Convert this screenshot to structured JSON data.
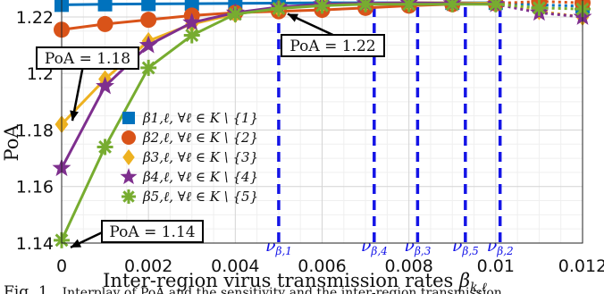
{
  "chart_data": {
    "type": "line",
    "xlabel": "Inter-region virus transmission rates β_{k,ℓ}",
    "ylabel": "PoA",
    "xlim": [
      0,
      0.012
    ],
    "ylim": [
      1.14,
      1.226
    ],
    "xticks": [
      0,
      0.002,
      0.004,
      0.006,
      0.008,
      0.01,
      0.012
    ],
    "xtick_labels": [
      "0",
      "0.002",
      "0.004",
      "0.006",
      "0.008",
      "0.01",
      "0.012"
    ],
    "yticks": [
      1.14,
      1.16,
      1.18,
      1.2,
      1.22
    ],
    "ytick_labels": [
      "1.14",
      "1.16",
      "1.18",
      "1.2",
      "1.22"
    ],
    "grid": true,
    "legend_position": "center-left",
    "series": [
      {
        "name": "β1,ℓ, ∀ℓ ∈ K \\ {1}",
        "color": "#0072BD",
        "marker": "square",
        "x": [
          0,
          0.001,
          0.002,
          0.003,
          0.004,
          0.005,
          0.006,
          0.007,
          0.008,
          0.009,
          0.01,
          0.011,
          0.012
        ],
        "y": [
          1.2243,
          1.2245,
          1.2246,
          1.2247,
          1.2248,
          1.2249,
          1.225,
          1.225,
          1.225,
          1.225,
          1.225,
          1.2243,
          1.2238
        ]
      },
      {
        "name": "β2,ℓ, ∀ℓ ∈ K \\ {2}",
        "color": "#D95319",
        "marker": "circle",
        "x": [
          0,
          0.001,
          0.002,
          0.003,
          0.004,
          0.005,
          0.006,
          0.007,
          0.008,
          0.009,
          0.01,
          0.011,
          0.012
        ],
        "y": [
          1.2155,
          1.2175,
          1.219,
          1.2205,
          1.2215,
          1.222,
          1.2225,
          1.2232,
          1.224,
          1.2245,
          1.2248,
          1.2255,
          1.225
        ]
      },
      {
        "name": "β3,ℓ, ∀ℓ ∈ K \\ {3}",
        "color": "#EDB120",
        "marker": "diamond",
        "x": [
          0,
          0.001,
          0.002,
          0.003,
          0.004,
          0.005,
          0.006,
          0.007,
          0.008,
          0.009,
          0.01,
          0.011,
          0.012
        ],
        "y": [
          1.182,
          1.198,
          1.2115,
          1.2175,
          1.221,
          1.223,
          1.2245,
          1.2248,
          1.225,
          1.225,
          1.2248,
          1.222,
          1.22
        ]
      },
      {
        "name": "β4,ℓ, ∀ℓ ∈ K \\ {4}",
        "color": "#7E2F8E",
        "marker": "star",
        "x": [
          0,
          0.001,
          0.002,
          0.003,
          0.004,
          0.005,
          0.006,
          0.007,
          0.008,
          0.009,
          0.01,
          0.011,
          0.012
        ],
        "y": [
          1.1665,
          1.1955,
          1.21,
          1.218,
          1.2215,
          1.2235,
          1.2245,
          1.2248,
          1.225,
          1.2248,
          1.2245,
          1.2215,
          1.22
        ]
      },
      {
        "name": "β5,ℓ, ∀ℓ ∈ K \\ {5}",
        "color": "#77AC30",
        "marker": "asterisk",
        "x": [
          0,
          0.001,
          0.002,
          0.003,
          0.004,
          0.005,
          0.006,
          0.007,
          0.008,
          0.009,
          0.01,
          0.011,
          0.012
        ],
        "y": [
          1.141,
          1.174,
          1.202,
          1.2135,
          1.221,
          1.223,
          1.224,
          1.2245,
          1.2245,
          1.2245,
          1.2245,
          1.2232,
          1.2228
        ]
      }
    ],
    "vlines": [
      {
        "label_base": "ν",
        "label_sub": "β,1",
        "x": 0.005
      },
      {
        "label_base": "ν",
        "label_sub": "β,4",
        "x": 0.0072
      },
      {
        "label_base": "ν",
        "label_sub": "β,3",
        "x": 0.0082
      },
      {
        "label_base": "ν",
        "label_sub": "β,5",
        "x": 0.0093
      },
      {
        "label_base": "ν",
        "label_sub": "β,2",
        "x": 0.0101
      }
    ],
    "annotations": [
      {
        "text": "PoA = 1.18",
        "x": 0,
        "y": 1.182
      },
      {
        "text": "PoA = 1.22",
        "x": 0.005,
        "y": 1.2249
      },
      {
        "text": "PoA = 1.14",
        "x": 0,
        "y": 1.141
      }
    ]
  },
  "caption": {
    "prefix": "Fig. 1.",
    "text": "Interplay of PoA and the sensitivity and the inter-region transmission"
  }
}
